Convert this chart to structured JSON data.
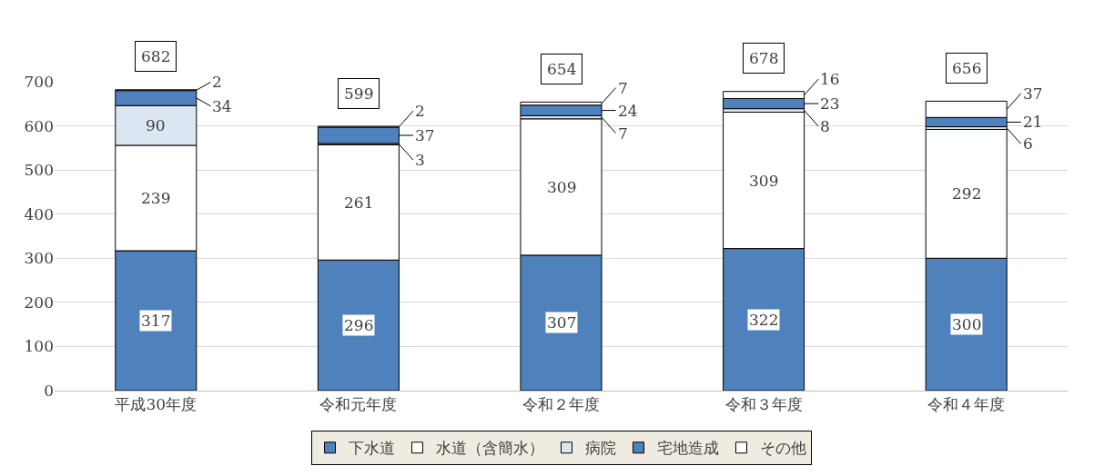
{
  "chart_data": {
    "type": "bar",
    "stacked": true,
    "categories": [
      "平成30年度",
      "令和元年度",
      "令和２年度",
      "令和３年度",
      "令和４年度"
    ],
    "series": [
      {
        "name": "下水道",
        "color": "#4f81bd",
        "values": [
          317,
          296,
          307,
          322,
          300
        ]
      },
      {
        "name": "水道（含簡水）",
        "color": "#ffffff",
        "values": [
          239,
          261,
          309,
          309,
          292
        ]
      },
      {
        "name": "病院",
        "color": "#dce6f2",
        "values": [
          90,
          3,
          7,
          8,
          6
        ]
      },
      {
        "name": "宅地造成",
        "color": "#4f81bd",
        "values": [
          34,
          37,
          24,
          23,
          21
        ]
      },
      {
        "name": "その他",
        "color": "#ffffff",
        "values": [
          2,
          2,
          7,
          16,
          37
        ]
      }
    ],
    "totals": [
      "682",
      "599",
      "654",
      "678",
      "656"
    ],
    "data_labels": true,
    "ylim": [
      0,
      700
    ],
    "yticks": [
      0,
      100,
      200,
      300,
      400,
      500,
      600,
      700
    ],
    "grid": "y",
    "legend": "bottom"
  }
}
